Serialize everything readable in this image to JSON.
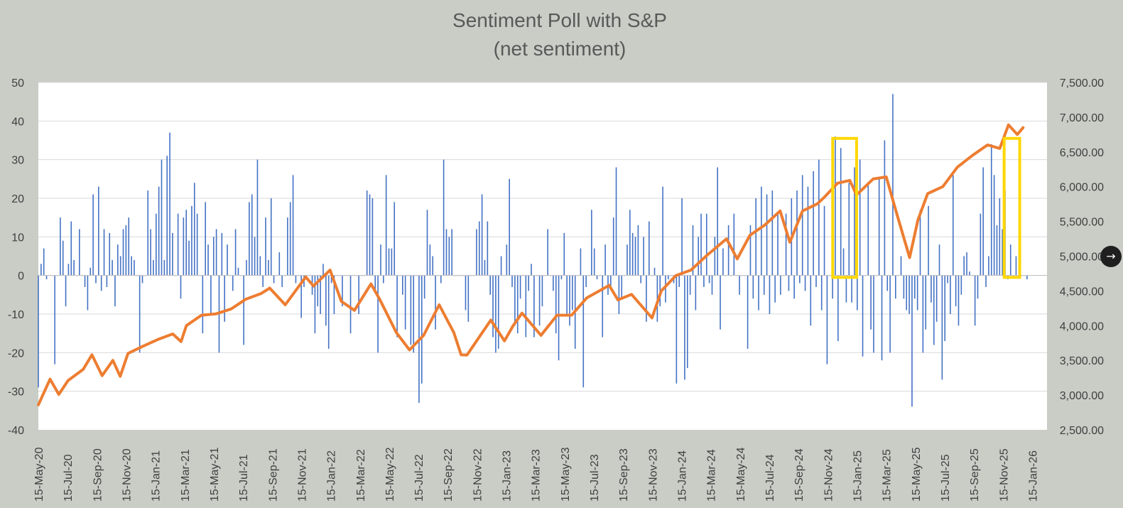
{
  "chart_data": {
    "type": "bar+line",
    "title": "Sentiment Poll with S&P",
    "subtitle": "(net sentiment)",
    "left_axis": {
      "min": -40,
      "max": 50,
      "step": 10,
      "tick_labels": [
        "50",
        "40",
        "30",
        "20",
        "10",
        "0",
        "-10",
        "-20",
        "-30",
        "-40"
      ]
    },
    "right_axis": {
      "min": 2500,
      "max": 7500,
      "step": 500,
      "tick_labels": [
        "7,500.00",
        "7,000.00",
        "6,500.00",
        "6,000.00",
        "5,500.00",
        "5,000.00",
        "4,500.00",
        "4,000.00",
        "3,500.00",
        "3,000.00",
        "2,500.00"
      ]
    },
    "x_axis": {
      "start": "2020-05-15",
      "end": "2026-01-15",
      "tick_labels": [
        "15-May-20",
        "15-Jul-20",
        "15-Sep-20",
        "15-Nov-20",
        "15-Jan-21",
        "15-Mar-21",
        "15-May-21",
        "15-Jul-21",
        "15-Sep-21",
        "15-Nov-21",
        "15-Jan-22",
        "15-Mar-22",
        "15-May-22",
        "15-Jul-22",
        "15-Sep-22",
        "15-Nov-22",
        "15-Jan-23",
        "15-Mar-23",
        "15-May-23",
        "15-Jul-23",
        "15-Sep-23",
        "15-Nov-23",
        "15-Jan-24",
        "15-Mar-24",
        "15-May-24",
        "15-Jul-24",
        "15-Sep-24",
        "15-Nov-24",
        "15-Jan-25",
        "15-Mar-25",
        "15-May-25",
        "15-Jul-25",
        "15-Sep-25",
        "15-Nov-25",
        "15-Jan-26"
      ]
    },
    "series": [
      {
        "name": "Net sentiment",
        "type": "bar",
        "color": "#4472c4",
        "values": [
          -29,
          3,
          7,
          -1,
          0,
          0,
          -23,
          0,
          15,
          9,
          -8,
          3,
          14,
          4,
          0,
          12,
          0,
          -3,
          -9,
          2,
          21,
          -2,
          23,
          -4,
          12,
          -3,
          11,
          4,
          -8,
          8,
          5,
          12,
          13,
          15,
          5,
          4,
          0,
          -20,
          -2,
          0,
          22,
          12,
          4,
          16,
          23,
          30,
          4,
          31,
          37,
          11,
          0,
          16,
          -6,
          15,
          17,
          9,
          18,
          24,
          16,
          0,
          -15,
          19,
          8,
          -10,
          10,
          12,
          -20,
          11,
          -12,
          8,
          0,
          -4,
          12,
          2,
          0,
          -18,
          4,
          19,
          21,
          10,
          30,
          5,
          -3,
          15,
          4,
          20,
          -2,
          0,
          6,
          -3,
          0,
          15,
          19,
          26,
          -2,
          0,
          -11,
          -3,
          0,
          0,
          -5,
          -15,
          -8,
          -10,
          3,
          -13,
          -19,
          -2,
          -10,
          0,
          0,
          -8,
          0,
          0,
          -15,
          0,
          0,
          -10,
          0,
          0,
          22,
          21,
          20,
          -4,
          -20,
          8,
          -2,
          26,
          7,
          7,
          19,
          -16,
          0,
          -5,
          -14,
          0,
          -18,
          -20,
          0,
          -33,
          -28,
          -6,
          17,
          8,
          5,
          -14,
          0,
          -2,
          30,
          12,
          10,
          12,
          0,
          0,
          0,
          0,
          -9,
          -12,
          0,
          0,
          12,
          14,
          21,
          4,
          14,
          -5,
          -16,
          -20,
          -19,
          5,
          0,
          8,
          25,
          -3,
          -13,
          -15,
          -6,
          0,
          -16,
          -4,
          3,
          -16,
          0,
          -13,
          -8,
          0,
          12,
          0,
          -4,
          -15,
          -22,
          -1,
          11,
          -10,
          -13,
          -9,
          -19,
          0,
          7,
          -29,
          -3,
          0,
          17,
          7,
          -1,
          0,
          -16,
          8,
          -5,
          -3,
          15,
          28,
          -10,
          -6,
          0,
          8,
          17,
          11,
          10,
          13,
          -2,
          10,
          -12,
          14,
          0,
          2,
          -12,
          -8,
          23,
          -7,
          -1,
          0,
          -2,
          -28,
          -3,
          20,
          -27,
          -24,
          -5,
          13,
          -9,
          10,
          16,
          -3,
          16,
          -2,
          -5,
          10,
          28,
          -14,
          7,
          0,
          13,
          0,
          16,
          0,
          -5,
          0,
          0,
          -19,
          13,
          -6,
          20,
          -9,
          23,
          -5,
          21,
          -10,
          22,
          -7,
          16,
          -5,
          0,
          16,
          -4,
          20,
          -6,
          22,
          -2,
          26,
          -4,
          23,
          -13,
          27,
          -3,
          30,
          -9,
          18,
          -23,
          0,
          -6,
          36,
          -17,
          33,
          7,
          -7,
          24,
          -7,
          28,
          -9,
          30,
          -21,
          0,
          24,
          -14,
          -20,
          0,
          25,
          -22,
          35,
          -4,
          -20,
          47,
          -6,
          0,
          5,
          -6,
          -9,
          -10,
          -34,
          -6,
          -9,
          17,
          -20,
          -14,
          18,
          -7,
          -18,
          -12,
          8,
          -27,
          -17,
          -2,
          -10,
          26,
          -8,
          -13,
          -5,
          5,
          6,
          1,
          0,
          -13,
          -6,
          16,
          28,
          -3,
          5,
          34,
          26,
          13,
          20,
          12,
          22,
          -1,
          8,
          0,
          5,
          0,
          0,
          0,
          -1
        ]
      },
      {
        "name": "S&P 500",
        "type": "line",
        "color": "#ed7d31",
        "x_dates": [
          "2020-05-15",
          "2020-06-08",
          "2020-06-26",
          "2020-07-15",
          "2020-08-15",
          "2020-09-02",
          "2020-09-23",
          "2020-10-15",
          "2020-10-30",
          "2020-11-15",
          "2020-12-15",
          "2021-01-15",
          "2021-02-15",
          "2021-03-04",
          "2021-03-15",
          "2021-04-15",
          "2021-05-15",
          "2021-06-15",
          "2021-07-15",
          "2021-08-15",
          "2021-09-02",
          "2021-10-04",
          "2021-11-15",
          "2021-12-01",
          "2022-01-04",
          "2022-01-27",
          "2022-02-23",
          "2022-03-29",
          "2022-04-15",
          "2022-05-20",
          "2022-06-16",
          "2022-07-15",
          "2022-08-16",
          "2022-09-15",
          "2022-09-30",
          "2022-10-12",
          "2022-11-30",
          "2022-12-28",
          "2023-01-15",
          "2023-02-02",
          "2023-03-13",
          "2023-04-15",
          "2023-05-15",
          "2023-06-15",
          "2023-07-31",
          "2023-08-18",
          "2023-09-15",
          "2023-10-27",
          "2023-11-15",
          "2023-12-15",
          "2024-01-15",
          "2024-02-15",
          "2024-03-28",
          "2024-04-19",
          "2024-05-15",
          "2024-06-15",
          "2024-07-16",
          "2024-08-05",
          "2024-08-31",
          "2024-09-30",
          "2024-10-15",
          "2024-11-11",
          "2024-12-06",
          "2024-12-20",
          "2025-01-23",
          "2025-02-19",
          "2025-03-13",
          "2025-04-08",
          "2025-04-25",
          "2025-05-15",
          "2025-06-15",
          "2025-07-15",
          "2025-08-15",
          "2025-09-15",
          "2025-10-10",
          "2025-10-28",
          "2025-11-15",
          "2025-11-27"
        ],
        "values": [
          2860,
          3230,
          3010,
          3210,
          3370,
          3580,
          3280,
          3500,
          3270,
          3600,
          3700,
          3800,
          3880,
          3770,
          4000,
          4150,
          4170,
          4240,
          4380,
          4460,
          4540,
          4300,
          4700,
          4570,
          4800,
          4350,
          4220,
          4600,
          4390,
          3900,
          3650,
          3860,
          4300,
          3900,
          3580,
          3577,
          4080,
          3780,
          4000,
          4180,
          3860,
          4150,
          4150,
          4400,
          4580,
          4370,
          4450,
          4110,
          4500,
          4720,
          4800,
          5000,
          5250,
          4960,
          5300,
          5450,
          5650,
          5200,
          5650,
          5750,
          5850,
          6050,
          6090,
          5880,
          6110,
          6140,
          5600,
          4980,
          5520,
          5900,
          6000,
          6280,
          6450,
          6600,
          6550,
          6890,
          6750,
          6850
        ]
      }
    ],
    "annotations": [
      {
        "type": "highlight-box",
        "color": "#ffd700",
        "from": "2024-11-01",
        "to": "2024-12-20"
      },
      {
        "type": "highlight-box",
        "color": "#ffd700",
        "from": "2025-10-19",
        "to": "2025-11-20"
      }
    ]
  },
  "ui": {
    "nav_arrow": "→",
    "nav_icon": "arrow-right-icon"
  }
}
